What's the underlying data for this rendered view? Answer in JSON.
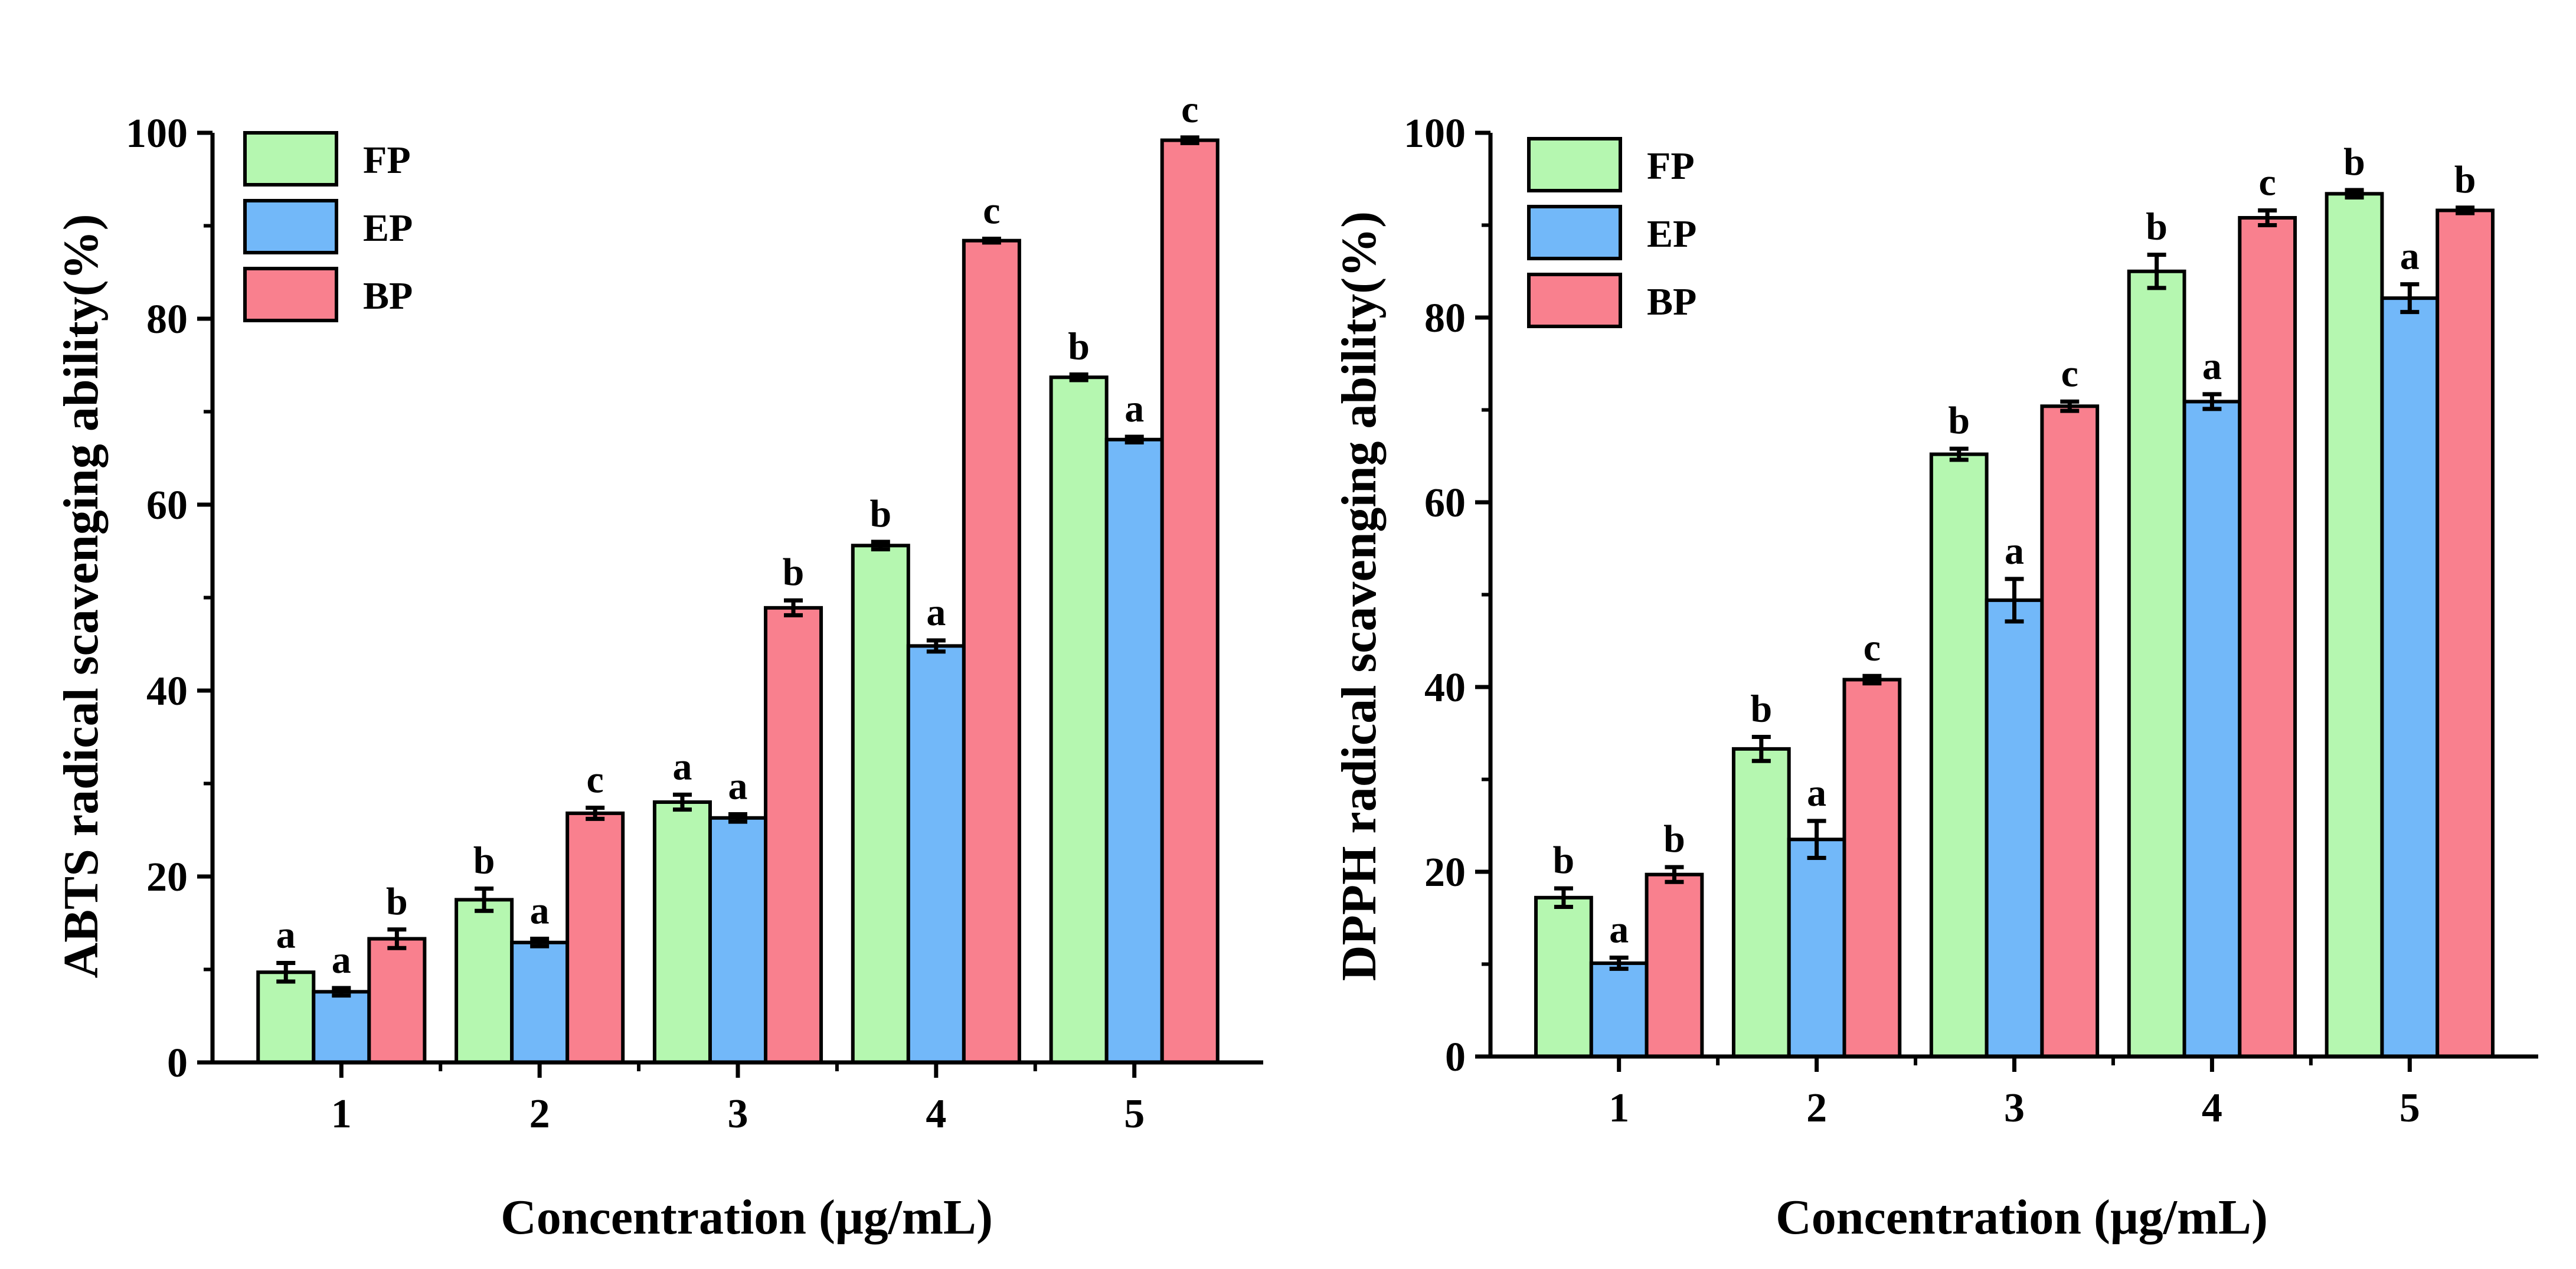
{
  "chart_data": [
    {
      "type": "bar",
      "title": "",
      "xlabel": "Concentration (μg/mL)",
      "ylabel": "ABTS radical scavenging ability(%)",
      "ylim": [
        0,
        100
      ],
      "yticks": [
        "0",
        "20",
        "40",
        "60",
        "80",
        "100"
      ],
      "categories": [
        "1",
        "2",
        "3",
        "4",
        "5"
      ],
      "grid": false,
      "legend": "top-left",
      "series": [
        {
          "name": "FP",
          "color": "#b5f7b0",
          "values": [
            9.7,
            17.5,
            28.0,
            55.6,
            73.7
          ],
          "errors": [
            1.0,
            1.2,
            0.8,
            0.4,
            0.3
          ],
          "letters": [
            "a",
            "b",
            "a",
            "b",
            "b"
          ]
        },
        {
          "name": "EP",
          "color": "#72b8f9",
          "values": [
            7.6,
            12.9,
            26.3,
            44.8,
            67.0
          ],
          "errors": [
            0.4,
            0.4,
            0.4,
            0.6,
            0.3
          ],
          "letters": [
            "a",
            "a",
            "a",
            "a",
            "a"
          ]
        },
        {
          "name": "BP",
          "color": "#f9808e",
          "values": [
            13.3,
            26.8,
            48.9,
            88.4,
            99.2
          ],
          "errors": [
            1.0,
            0.6,
            0.8,
            0.2,
            0.3
          ],
          "letters": [
            "b",
            "c",
            "b",
            "c",
            "c"
          ]
        }
      ]
    },
    {
      "type": "bar",
      "title": "",
      "xlabel": "Concentration (μg/mL)",
      "ylabel": "DPPH radical scavenging ability(%)",
      "ylim": [
        0,
        100
      ],
      "yticks": [
        "0",
        "20",
        "40",
        "60",
        "80",
        "100"
      ],
      "categories": [
        "1",
        "2",
        "3",
        "4",
        "5"
      ],
      "grid": false,
      "legend": "top-left",
      "series": [
        {
          "name": "FP",
          "color": "#b5f7b0",
          "values": [
            17.2,
            33.3,
            65.2,
            85.0,
            93.4
          ],
          "errors": [
            1.0,
            1.3,
            0.6,
            1.8,
            0.4
          ],
          "letters": [
            "b",
            "b",
            "b",
            "b",
            "b"
          ]
        },
        {
          "name": "EP",
          "color": "#72b8f9",
          "values": [
            10.1,
            23.5,
            49.4,
            70.9,
            82.1
          ],
          "errors": [
            0.6,
            2.0,
            2.3,
            0.8,
            1.5
          ],
          "letters": [
            "a",
            "a",
            "a",
            "a",
            "a"
          ]
        },
        {
          "name": "BP",
          "color": "#f9808e",
          "values": [
            19.7,
            40.8,
            70.4,
            90.8,
            91.6
          ],
          "errors": [
            0.8,
            0.4,
            0.5,
            0.8,
            0.3
          ],
          "letters": [
            "b",
            "c",
            "c",
            "c",
            "b"
          ]
        }
      ]
    }
  ]
}
